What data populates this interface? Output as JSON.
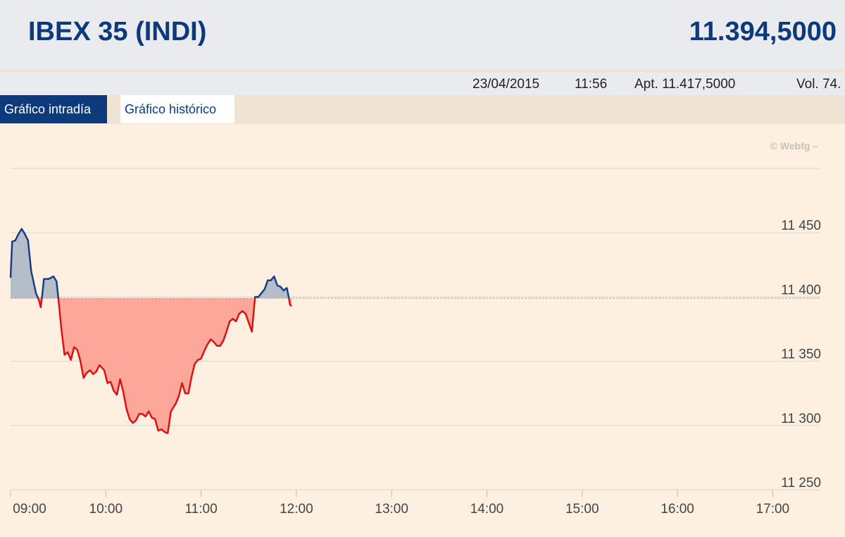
{
  "header": {
    "title": "IBEX 35 (INDI)",
    "price": "11.394,5000"
  },
  "info": {
    "date": "23/04/2015",
    "time": "11:56",
    "open": "Apt. 11.417,5000",
    "volume": "Vol. 74."
  },
  "tabs": [
    "Gráfico intradía",
    "Gráfico histórico"
  ],
  "chart_data": {
    "type": "area-line",
    "watermark": "© Webfg –",
    "x": [
      540,
      541,
      543,
      545,
      547,
      549,
      551,
      553,
      556,
      558,
      559,
      560,
      561,
      564,
      567,
      569,
      570,
      572,
      574,
      576,
      578,
      580,
      582,
      584,
      586,
      588,
      590,
      592,
      594,
      596,
      599,
      601,
      603,
      605,
      607,
      609,
      611,
      613,
      615,
      617,
      619,
      621,
      623,
      625,
      627,
      629,
      631,
      633,
      635,
      637,
      639,
      641,
      644,
      646,
      648,
      650,
      652,
      654,
      656,
      658,
      660,
      662,
      664,
      666,
      668,
      670,
      672,
      674,
      676,
      678,
      680,
      682,
      684,
      686,
      688,
      690,
      692,
      694,
      696,
      698,
      700,
      702,
      704,
      706,
      708,
      710,
      712,
      714,
      715,
      716,
      717
    ],
    "series": [
      {
        "values": [
          11415,
          11443,
          11444,
          11449,
          11453,
          11449,
          11444,
          11420,
          11403,
          11397,
          11392,
          11402,
          11414,
          11414,
          11416,
          11412,
          11400,
          11375,
          11355,
          11357,
          11351,
          11361,
          11359,
          11350,
          11337,
          11341,
          11343,
          11340,
          11342,
          11347,
          11343,
          11333,
          11334,
          11327,
          11324,
          11336,
          11326,
          11313,
          11305,
          11302,
          11304,
          11309,
          11309,
          11307,
          11311,
          11306,
          11305,
          11296,
          11297,
          11295,
          11294,
          11311,
          11317,
          11323,
          11333,
          11325,
          11325,
          11338,
          11348,
          11351,
          11352,
          11358,
          11363,
          11367,
          11365,
          11362,
          11362,
          11366,
          11373,
          11381,
          11383,
          11381,
          11387,
          11389,
          11387,
          11380,
          11373,
          11400,
          11400,
          11403,
          11406,
          11413,
          11413,
          11416,
          11409,
          11408,
          11405,
          11407,
          11401,
          11394,
          11393
        ],
        "color_above": "#173f84",
        "color_below": "#dd1111",
        "fill_above": "#b5bdc9",
        "fill_below": "#fca79a"
      }
    ],
    "baseline": 11399,
    "xlim": [
      540,
      1050
    ],
    "ylim": [
      11250,
      11500
    ],
    "xticks": [
      {
        "value": 540,
        "label": "09:00"
      },
      {
        "value": 600,
        "label": "10:00"
      },
      {
        "value": 660,
        "label": "11:00"
      },
      {
        "value": 720,
        "label": "12:00"
      },
      {
        "value": 780,
        "label": "13:00"
      },
      {
        "value": 840,
        "label": "14:00"
      },
      {
        "value": 900,
        "label": "15:00"
      },
      {
        "value": 960,
        "label": "16:00"
      },
      {
        "value": 1020,
        "label": "17:00"
      }
    ],
    "yticks": [
      {
        "value": 11250,
        "label": "11 250"
      },
      {
        "value": 11300,
        "label": "11 300"
      },
      {
        "value": 11350,
        "label": "11 350"
      },
      {
        "value": 11400,
        "label": "11 400"
      },
      {
        "value": 11450,
        "label": "11 450"
      }
    ],
    "grid": true
  }
}
